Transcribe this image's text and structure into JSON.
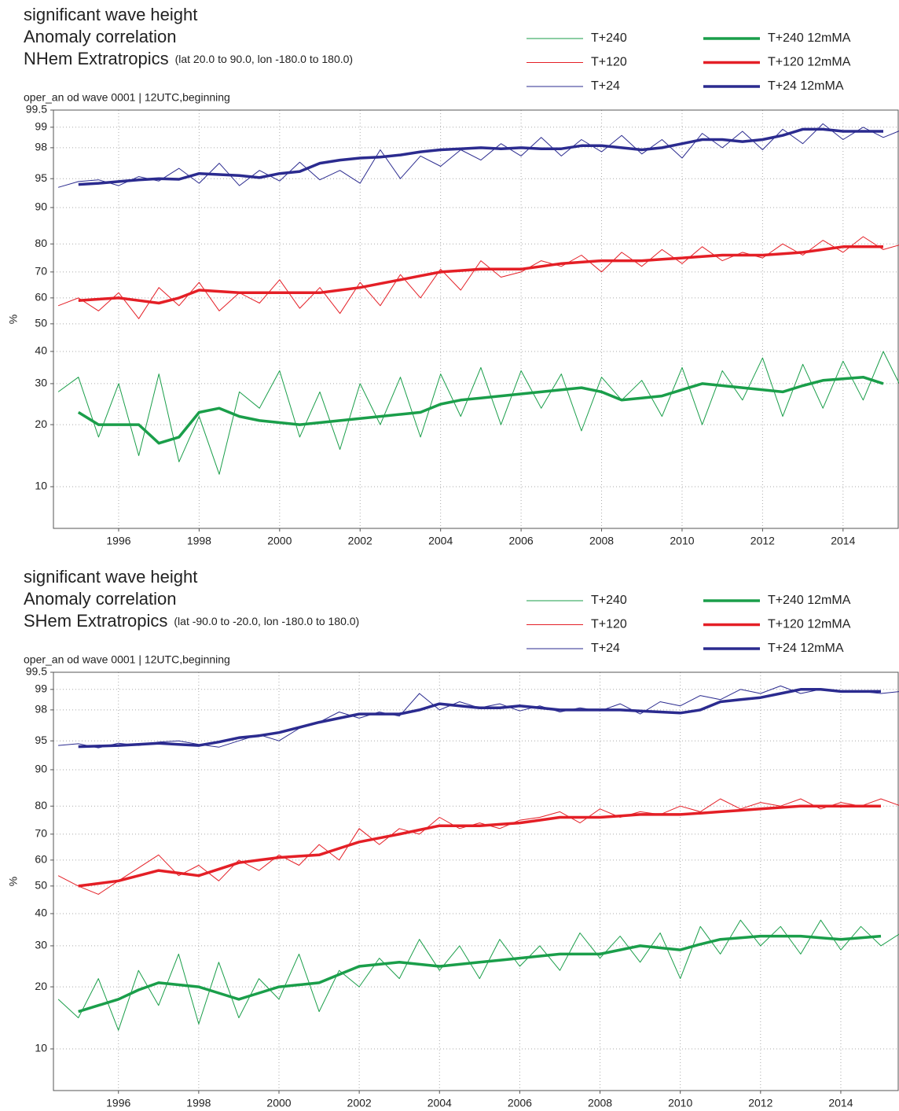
{
  "chart_data": [
    {
      "type": "line",
      "title": "significant wave height",
      "subtitle": "Anomaly correlation",
      "region": "NHem Extratropics",
      "region_note": "(lat  20.0 to 90.0, lon  -180.0 to  180.0)",
      "source": "oper_an od wave 0001 | 12UTC,beginning",
      "y_label": "%",
      "xlim": [
        1994.38,
        2015.39
      ],
      "xticks": [
        1996,
        1998,
        2000,
        2002,
        2004,
        2006,
        2008,
        2010,
        2012,
        2014
      ],
      "ylim": [
        0,
        99.5
      ],
      "yticks": [
        10,
        20,
        30,
        40,
        50,
        60,
        70,
        80,
        90,
        95,
        98,
        99,
        99.5
      ],
      "grid": true,
      "legend": "top-right",
      "x": [
        1994.5,
        1995,
        1995.5,
        1996,
        1996.5,
        1997,
        1997.5,
        1998,
        1998.5,
        1999,
        1999.5,
        2000,
        2000.5,
        2001,
        2001.5,
        2002,
        2002.5,
        2003,
        2003.5,
        2004,
        2004.5,
        2005,
        2005.5,
        2006,
        2006.5,
        2007,
        2007.5,
        2008,
        2008.5,
        2009,
        2009.5,
        2010,
        2010.5,
        2011,
        2011.5,
        2012,
        2012.5,
        2013,
        2013.5,
        2014,
        2014.5,
        2015,
        2015.5
      ],
      "series": [
        {
          "name": "T+240",
          "color": "#1a9e4a",
          "width": 1,
          "values": [
            28,
            32,
            18,
            30,
            15,
            33,
            14,
            22,
            12,
            28,
            24,
            34,
            18,
            28,
            16,
            30,
            20,
            32,
            18,
            33,
            22,
            35,
            20,
            34,
            24,
            33,
            19,
            32,
            26,
            31,
            22,
            35,
            20,
            34,
            26,
            38,
            22,
            36,
            24,
            37,
            26,
            40,
            28
          ]
        },
        {
          "name": "T+120",
          "color": "#e41f26",
          "width": 1,
          "values": [
            57,
            60,
            55,
            62,
            52,
            64,
            57,
            66,
            55,
            62,
            58,
            67,
            56,
            64,
            54,
            66,
            57,
            69,
            60,
            71,
            63,
            74,
            68,
            70,
            74,
            72,
            76,
            70,
            77,
            72,
            78,
            73,
            79,
            74,
            77,
            75,
            80,
            76,
            81,
            77,
            82,
            78,
            80
          ]
        },
        {
          "name": "T+24",
          "color": "#2b2b8f",
          "width": 1,
          "values": [
            93.5,
            94.5,
            94.8,
            93.8,
            95.2,
            94.6,
            96,
            94.2,
            96.5,
            93.8,
            95.8,
            94.6,
            96.6,
            94.8,
            95.8,
            94.2,
            97.8,
            95,
            97.2,
            96.2,
            97.8,
            96.8,
            98.2,
            97.2,
            98.5,
            97.2,
            98.4,
            97.6,
            98.6,
            97.4,
            98.4,
            97,
            98.7,
            98,
            98.8,
            97.8,
            98.9,
            98.2,
            99.1,
            98.4,
            99,
            98.5,
            98.9
          ]
        },
        {
          "name": "T+240 12mMA",
          "color": "#1a9e4a",
          "width": 3.5,
          "values": [
            null,
            23,
            20,
            20,
            20,
            17,
            18,
            23,
            24,
            22,
            21,
            20.5,
            20,
            20.5,
            21,
            21.5,
            22,
            22.5,
            23,
            25,
            26,
            26.5,
            27,
            27.5,
            28,
            28.5,
            29,
            28,
            26,
            26.5,
            27,
            28.5,
            30,
            29.5,
            29,
            28.5,
            28,
            29.5,
            31,
            31.5,
            32,
            30,
            null
          ]
        },
        {
          "name": "T+120 12mMA",
          "color": "#e41f26",
          "width": 3.5,
          "values": [
            null,
            59,
            59.5,
            60,
            59,
            58,
            60,
            63,
            62.5,
            62,
            62,
            62,
            62,
            62,
            63,
            64,
            65.5,
            67,
            68.5,
            70,
            70.5,
            71,
            71,
            71,
            72,
            73,
            73.5,
            74,
            74,
            74,
            74.5,
            75,
            75.5,
            76,
            76,
            76,
            76.5,
            77,
            78,
            79,
            79,
            79,
            null
          ]
        },
        {
          "name": "T+24 12mMA",
          "color": "#2b2b8f",
          "width": 3.5,
          "values": [
            null,
            94,
            94.2,
            94.5,
            94.8,
            95,
            94.9,
            95.5,
            95.4,
            95.3,
            95.1,
            95.5,
            95.7,
            96.5,
            96.8,
            97,
            97.1,
            97.3,
            97.6,
            97.8,
            97.9,
            98,
            97.9,
            98,
            97.9,
            97.9,
            98.1,
            98.1,
            98,
            97.8,
            98,
            98.2,
            98.4,
            98.4,
            98.3,
            98.4,
            98.6,
            98.9,
            98.9,
            98.8,
            98.8,
            98.8,
            null
          ]
        }
      ]
    },
    {
      "type": "line",
      "title": "significant wave height",
      "subtitle": "Anomaly correlation",
      "region": "SHem Extratropics",
      "region_note": "(lat  -90.0 to -20.0, lon  -180.0 to  180.0)",
      "source": "oper_an od wave 0001 | 12UTC,beginning",
      "y_label": "%",
      "xlim": [
        1994.38,
        2015.45
      ],
      "xticks": [
        1996,
        1998,
        2000,
        2002,
        2004,
        2006,
        2008,
        2010,
        2012,
        2014
      ],
      "ylim": [
        0,
        99.5
      ],
      "yticks": [
        10,
        20,
        30,
        40,
        50,
        60,
        70,
        80,
        90,
        95,
        98,
        99,
        99.5
      ],
      "grid": true,
      "legend": "top-right",
      "x": [
        1994.5,
        1995,
        1995.5,
        1996,
        1996.5,
        1997,
        1997.5,
        1998,
        1998.5,
        1999,
        1999.5,
        2000,
        2000.5,
        2001,
        2001.5,
        2002,
        2002.5,
        2003,
        2003.5,
        2004,
        2004.5,
        2005,
        2005.5,
        2006,
        2006.5,
        2007,
        2007.5,
        2008,
        2008.5,
        2009,
        2009.5,
        2010,
        2010.5,
        2011,
        2011.5,
        2012,
        2012.5,
        2013,
        2013.5,
        2014,
        2014.5,
        2015,
        2015.5
      ],
      "series": [
        {
          "name": "T+240",
          "color": "#1a9e4a",
          "width": 1,
          "values": [
            18,
            15,
            22,
            13,
            24,
            17,
            28,
            14,
            26,
            15,
            22,
            18,
            28,
            16,
            24,
            20,
            27,
            22,
            32,
            24,
            30,
            22,
            32,
            25,
            30,
            24,
            34,
            27,
            33,
            26,
            34,
            22,
            36,
            28,
            38,
            30,
            36,
            28,
            38,
            29,
            36,
            30,
            34
          ]
        },
        {
          "name": "T+120",
          "color": "#e41f26",
          "width": 1,
          "values": [
            54,
            50,
            47,
            52,
            57,
            62,
            54,
            58,
            52,
            60,
            56,
            62,
            58,
            66,
            60,
            72,
            66,
            72,
            70,
            76,
            72,
            74,
            72,
            75,
            76,
            78,
            74,
            79,
            76,
            78,
            77,
            80,
            78,
            82,
            79,
            81,
            80,
            82,
            79,
            81,
            80,
            82,
            80
          ]
        },
        {
          "name": "T+24",
          "color": "#2b2b8f",
          "width": 1,
          "values": [
            94.2,
            94.5,
            93.8,
            94.6,
            94.2,
            94.8,
            95,
            94.4,
            93.9,
            95,
            95.6,
            95,
            96.2,
            96.8,
            97.8,
            97.2,
            97.8,
            97.4,
            98.8,
            98,
            98.4,
            98.1,
            98.3,
            97.9,
            98.2,
            97.8,
            98.1,
            97.9,
            98.3,
            97.6,
            98.4,
            98.2,
            98.7,
            98.5,
            99,
            98.8,
            99.1,
            98.8,
            99,
            98.9,
            98.9,
            98.8,
            98.9
          ]
        },
        {
          "name": "T+240 12mMA",
          "color": "#1a9e4a",
          "width": 3.5,
          "values": [
            null,
            16,
            17,
            18,
            19.5,
            21,
            20.5,
            20,
            19,
            18,
            19,
            20,
            20.5,
            21,
            23,
            25,
            25.5,
            26,
            25.5,
            25,
            25.5,
            26,
            26.5,
            27,
            27.5,
            28,
            28,
            28,
            29,
            30,
            29.5,
            29,
            30.5,
            32,
            32.5,
            33,
            33,
            33,
            32.5,
            32,
            32.5,
            33,
            null
          ]
        },
        {
          "name": "T+120 12mMA",
          "color": "#e41f26",
          "width": 3.5,
          "values": [
            null,
            50,
            51,
            52,
            54,
            56,
            55,
            54,
            56.5,
            59,
            60,
            61,
            61.5,
            62,
            64.5,
            67,
            68.5,
            70,
            71.5,
            73,
            73,
            73,
            73.5,
            74,
            75,
            76,
            76,
            76,
            76.5,
            77,
            77,
            77,
            77.5,
            78,
            78.5,
            79,
            79.5,
            80,
            80,
            80,
            80,
            80,
            null
          ]
        },
        {
          "name": "T+24 12mMA",
          "color": "#2b2b8f",
          "width": 3.5,
          "values": [
            null,
            94,
            94.1,
            94.2,
            94.4,
            94.6,
            94.4,
            94.2,
            94.8,
            95.3,
            95.5,
            95.8,
            96.3,
            96.8,
            97.2,
            97.6,
            97.6,
            97.6,
            98,
            98.3,
            98.2,
            98.1,
            98.1,
            98.2,
            98.1,
            98,
            98,
            98,
            98,
            97.9,
            97.8,
            97.7,
            98,
            98.4,
            98.5,
            98.6,
            98.8,
            99,
            99,
            98.9,
            98.9,
            98.9,
            null
          ]
        }
      ]
    }
  ]
}
